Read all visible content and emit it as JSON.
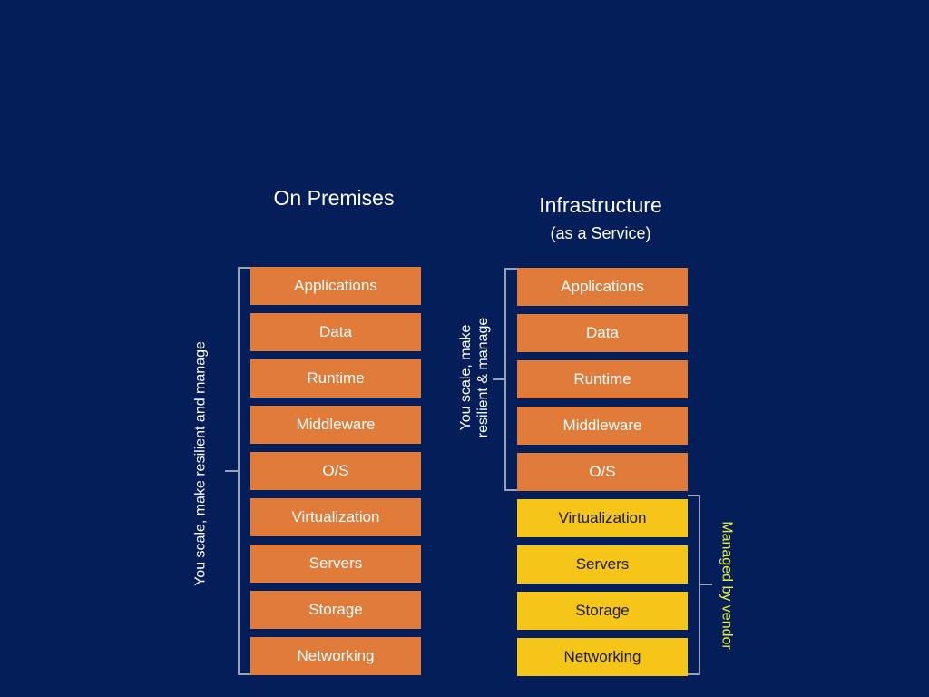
{
  "on_premises": {
    "title": "On Premises",
    "side_label": "You scale, make resilient and manage",
    "layers": [
      "Applications",
      "Data",
      "Runtime",
      "Middleware",
      "O/S",
      "Virtualization",
      "Servers",
      "Storage",
      "Networking"
    ]
  },
  "iaas": {
    "title": "Infrastructure",
    "subtitle": "(as a Service)",
    "side_label_line1": "You scale, make",
    "side_label_line2": "resilient & manage",
    "vendor_label": "Managed by vendor",
    "layers": [
      "Applications",
      "Data",
      "Runtime",
      "Middleware",
      "O/S",
      "Virtualization",
      "Servers",
      "Storage",
      "Networking"
    ]
  },
  "colors": {
    "background": "#041e5a",
    "customer": "#e07b39",
    "vendor": "#f5c518",
    "vendor_text": "#e8f03a"
  }
}
